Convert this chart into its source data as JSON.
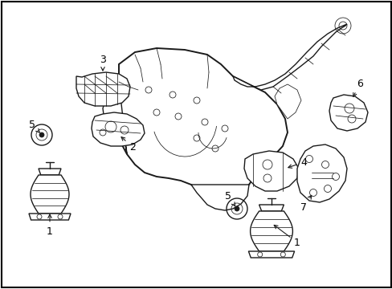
{
  "background_color": "#ffffff",
  "line_color": "#1a1a1a",
  "label_color": "#000000",
  "fig_width": 4.89,
  "fig_height": 3.6,
  "dpi": 100,
  "border_color": "#000000",
  "lw_main": 1.0,
  "lw_thin": 0.55,
  "lw_thick": 1.4
}
